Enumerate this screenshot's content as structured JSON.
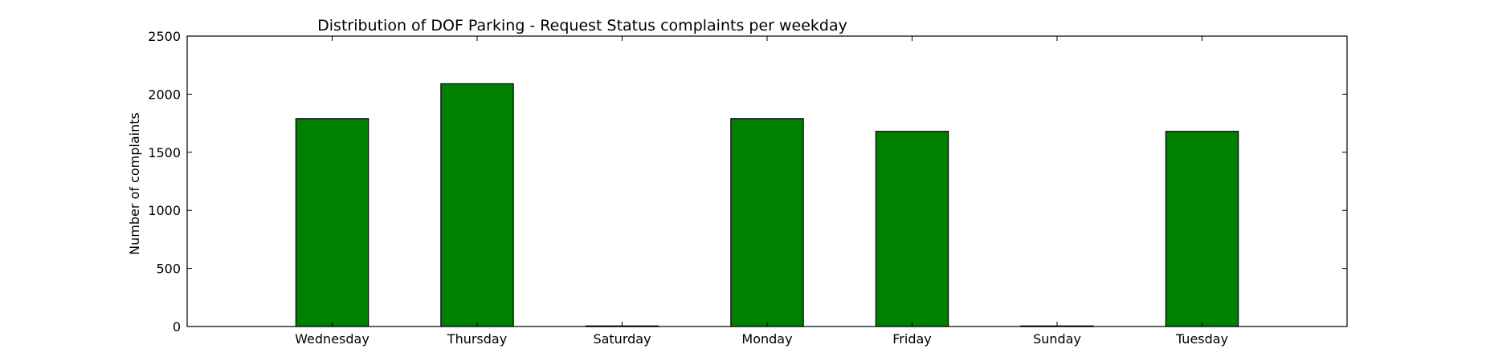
{
  "chart_data": {
    "type": "bar",
    "title": "Distribution of  DOF Parking - Request Status complaints per weekday",
    "xlabel": "",
    "ylabel": "Number of complaints",
    "categories": [
      "Wednesday",
      "Thursday",
      "Saturday",
      "Monday",
      "Friday",
      "Sunday",
      "Tuesday"
    ],
    "values": [
      1790,
      2090,
      5,
      1790,
      1680,
      5,
      1680
    ],
    "ylim": [
      0,
      2500
    ],
    "yticks": [
      0,
      500,
      1000,
      1500,
      2000,
      2500
    ],
    "grid": false,
    "legend": "none",
    "bar_color": "#008000",
    "edge_color": "#000000"
  }
}
